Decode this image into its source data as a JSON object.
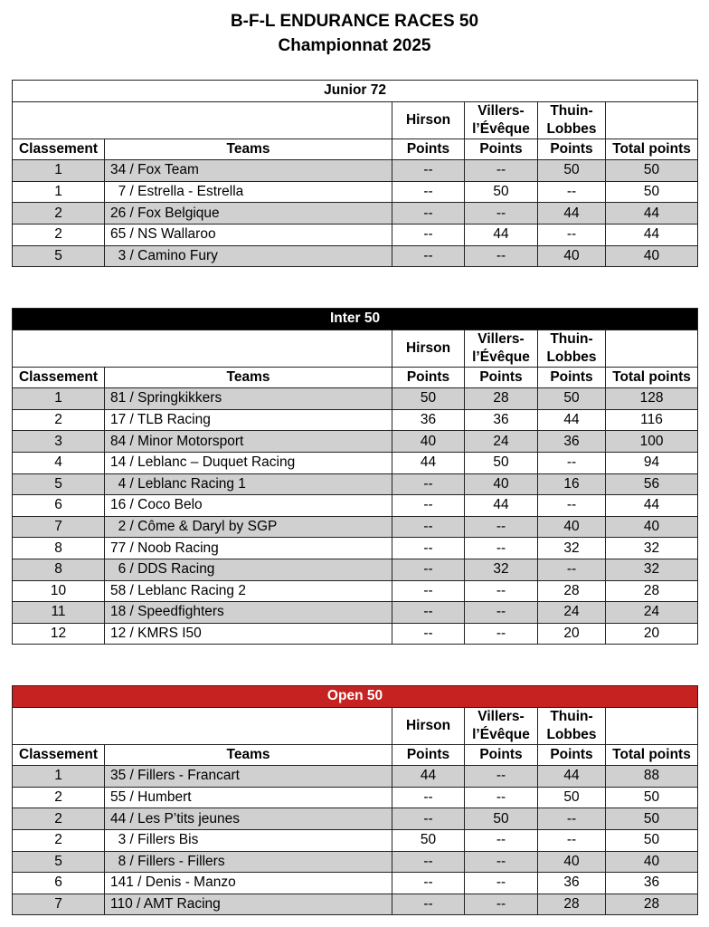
{
  "header": {
    "title": "B-F-L ENDURANCE RACES 50",
    "subtitle": "Championnat 2025"
  },
  "columns": {
    "classement": "Classement",
    "teams": "Teams",
    "venues": [
      "Hirson",
      "Villers-\nl’Évêque",
      "Thuin-\nLobbes"
    ],
    "points": "Points",
    "total": "Total points"
  },
  "colors": {
    "junior_header": "#ffffff",
    "inter_header": "#000000",
    "open_header": "#c62222",
    "row_shade": "#d0d0d0"
  },
  "sections": [
    {
      "name": "Junior 72",
      "rows": [
        [
          "1",
          "34 / Fox Team",
          "--",
          "--",
          "50",
          "50"
        ],
        [
          "1",
          "  7 / Estrella - Estrella",
          "--",
          "50",
          "--",
          "50"
        ],
        [
          "2",
          "26 / Fox Belgique",
          "--",
          "--",
          "44",
          "44"
        ],
        [
          "2",
          "65 / NS Wallaroo",
          "--",
          "44",
          "--",
          "44"
        ],
        [
          "5",
          "  3 / Camino Fury",
          "--",
          "--",
          "40",
          "40"
        ]
      ]
    },
    {
      "name": "Inter 50",
      "rows": [
        [
          "1",
          "81 / Springkikkers",
          "50",
          "28",
          "50",
          "128"
        ],
        [
          "2",
          "17 / TLB Racing",
          "36",
          "36",
          "44",
          "116"
        ],
        [
          "3",
          "84 / Minor Motorsport",
          "40",
          "24",
          "36",
          "100"
        ],
        [
          "4",
          "14 / Leblanc – Duquet Racing",
          "44",
          "50",
          "--",
          "94"
        ],
        [
          "5",
          "  4 / Leblanc Racing 1",
          "--",
          "40",
          "16",
          "56"
        ],
        [
          "6",
          "16 / Coco Belo",
          "--",
          "44",
          "--",
          "44"
        ],
        [
          "7",
          "  2 / Côme & Daryl by SGP",
          "--",
          "--",
          "40",
          "40"
        ],
        [
          "8",
          "77 / Noob Racing",
          "--",
          "--",
          "32",
          "32"
        ],
        [
          "8",
          "  6 / DDS Racing",
          "--",
          "32",
          "--",
          "32"
        ],
        [
          "10",
          "58 / Leblanc Racing 2",
          "--",
          "--",
          "28",
          "28"
        ],
        [
          "11",
          "18 / Speedfighters",
          "--",
          "--",
          "24",
          "24"
        ],
        [
          "12",
          "12 / KMRS I50",
          "--",
          "--",
          "20",
          "20"
        ]
      ]
    },
    {
      "name": "Open 50",
      "rows": [
        [
          "1",
          "35 / Fillers - Francart",
          "44",
          "--",
          "44",
          "88"
        ],
        [
          "2",
          "55 / Humbert",
          "--",
          "--",
          "50",
          "50"
        ],
        [
          "2",
          "44 / Les P’tits jeunes",
          "--",
          "50",
          "--",
          "50"
        ],
        [
          "2",
          "  3 / Fillers Bis",
          "50",
          "--",
          "--",
          "50"
        ],
        [
          "5",
          "  8 / Fillers - Fillers",
          "--",
          "--",
          "40",
          "40"
        ],
        [
          "6",
          "141 / Denis - Manzo",
          "--",
          "--",
          "36",
          "36"
        ],
        [
          "7",
          "110 / AMT Racing",
          "--",
          "--",
          "28",
          "28"
        ]
      ]
    }
  ]
}
